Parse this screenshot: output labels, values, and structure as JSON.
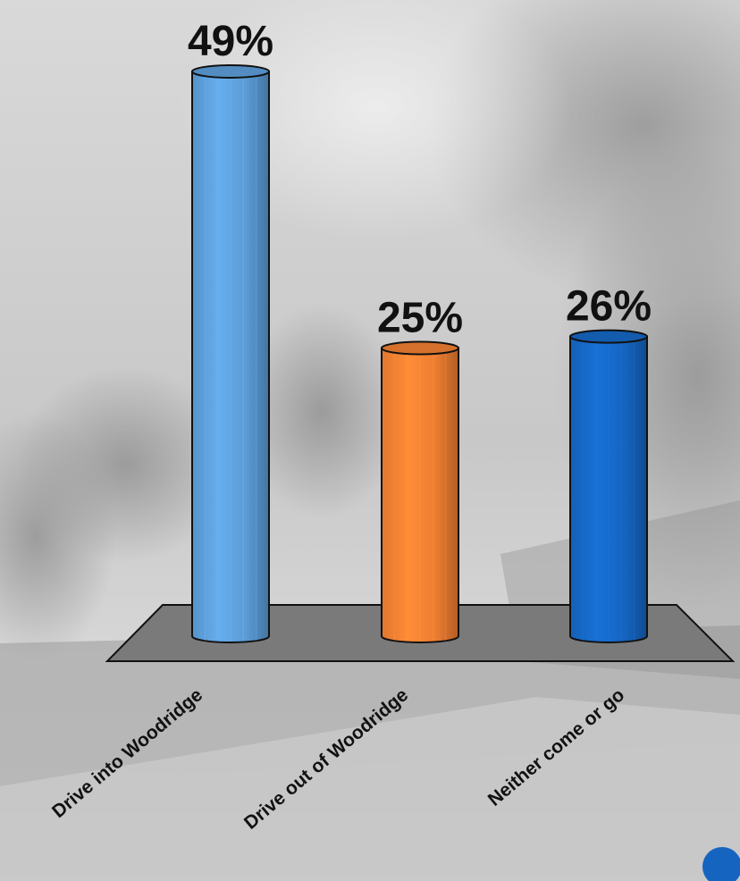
{
  "chart_data": {
    "type": "bar",
    "categories": [
      "Drive into Woodridge",
      "Drive out of Woodridge",
      "Neither come or go"
    ],
    "values": [
      49,
      25,
      26
    ],
    "value_labels": [
      "49%",
      "25%",
      "26%"
    ],
    "unit": "%",
    "colors": [
      "#5B9BD5",
      "#ED7D31",
      "#1565C0"
    ],
    "ylim": [
      0,
      50
    ],
    "grid": false,
    "legend": "none",
    "style": "3d-cylinder",
    "floor_color": "#7a7a7a",
    "background": "grayscale photo of a tree-lined street"
  }
}
